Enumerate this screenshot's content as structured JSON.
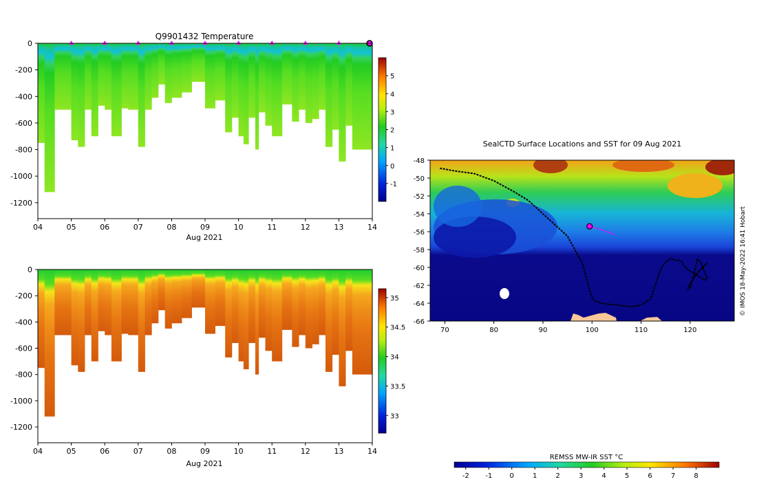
{
  "chart_data": [
    {
      "type": "heatmap",
      "title": "Q9901432  Temperature",
      "xlabel": "Aug 2021",
      "ylabel": "",
      "x_tick_labels": [
        "04",
        "05",
        "06",
        "07",
        "08",
        "09",
        "10",
        "11",
        "12",
        "13",
        "14"
      ],
      "xlim": [
        4,
        14
      ],
      "ylim": [
        -1320,
        0
      ],
      "y_ticks": [
        0,
        -200,
        -400,
        -600,
        -800,
        -1000,
        -1200
      ],
      "grid": false,
      "variable": "temperature",
      "colorbar": {
        "range": [
          -2,
          6
        ],
        "ticks": [
          5,
          4,
          3,
          2,
          1,
          0,
          -1
        ]
      },
      "profile_markers_day": [
        5,
        6,
        7,
        8,
        9,
        10,
        11,
        12,
        13,
        14
      ],
      "series": [
        {
          "name": "profile_depth",
          "x": [
            4.0,
            4.2,
            4.5,
            4.7,
            5.0,
            5.2,
            5.4,
            5.6,
            5.8,
            6.0,
            6.2,
            6.5,
            6.7,
            7.0,
            7.2,
            7.4,
            7.6,
            7.8,
            8.0,
            8.3,
            8.6,
            9.0,
            9.3,
            9.6,
            9.8,
            10.0,
            10.15,
            10.3,
            10.5,
            10.6,
            10.8,
            11.0,
            11.3,
            11.6,
            11.8,
            12.0,
            12.2,
            12.4,
            12.6,
            12.8,
            13.0,
            13.2,
            13.4,
            13.7,
            13.9
          ],
          "values": [
            -750,
            -1120,
            -500,
            -500,
            -730,
            -780,
            -500,
            -700,
            -470,
            -500,
            -700,
            -490,
            -500,
            -780,
            -500,
            -410,
            -310,
            -450,
            -410,
            -370,
            -290,
            -490,
            -430,
            -670,
            -560,
            -700,
            -760,
            -560,
            -800,
            -520,
            -620,
            -700,
            -460,
            -590,
            -500,
            -600,
            -570,
            -500,
            -780,
            -650,
            -890,
            -620,
            -800,
            -800,
            -800
          ]
        },
        {
          "name": "surface_temperature_C",
          "x": [
            4,
            6,
            8,
            10,
            12,
            14
          ],
          "values": [
            1.8,
            0.5,
            0.3,
            0.4,
            0.5,
            1.9
          ]
        },
        {
          "name": "deep_temperature_C",
          "x": [
            4,
            6,
            8,
            10,
            12,
            14
          ],
          "values": [
            2.6,
            1.9,
            1.9,
            1.8,
            1.9,
            2.3
          ]
        }
      ]
    },
    {
      "type": "heatmap",
      "title": "",
      "xlabel": "Aug 2021",
      "ylabel": "",
      "x_tick_labels": [
        "04",
        "05",
        "06",
        "07",
        "08",
        "09",
        "10",
        "11",
        "12",
        "13",
        "14"
      ],
      "xlim": [
        4,
        14
      ],
      "ylim": [
        -1320,
        0
      ],
      "y_ticks": [
        0,
        -200,
        -400,
        -600,
        -800,
        -1000,
        -1200
      ],
      "grid": false,
      "variable": "salinity",
      "colorbar": {
        "range": [
          32.7,
          35.15
        ],
        "tick_labels": [
          "35",
          "34.5",
          "34",
          "33.5",
          "33"
        ],
        "ticks": [
          35,
          34.5,
          34,
          33.5,
          33
        ]
      },
      "series": [
        {
          "name": "surface_salinity",
          "x": [
            4,
            14
          ],
          "values": [
            33.9,
            33.9
          ]
        },
        {
          "name": "deep_salinity",
          "x": [
            4,
            14
          ],
          "values": [
            34.65,
            34.72
          ]
        }
      ]
    },
    {
      "type": "scatter",
      "title": "SealCTD Surface Locations and SST for 09 Aug 2021",
      "xlabel": "",
      "ylabel": "",
      "x_tick_labels": [
        "70",
        "80",
        "90",
        "100",
        "110",
        "120"
      ],
      "y_tick_labels": [
        "-48",
        "-50",
        "-52",
        "-54",
        "-56",
        "-58",
        "-60",
        "-62",
        "-64",
        "-66"
      ],
      "xlim": [
        67,
        129
      ],
      "ylim": [
        -66,
        -48
      ],
      "grid": false,
      "credit": "© IMOS 18-May-2022 16:41 Hobart",
      "colorbar": {
        "label": "REMSS MW-IR SST °C",
        "range": [
          -2.5,
          9.0
        ],
        "tick_labels": [
          "-2",
          "-1",
          "0",
          "1",
          "2",
          "3",
          "4",
          "5",
          "6",
          "7",
          "8"
        ],
        "ticks": [
          -2,
          -1,
          0,
          1,
          2,
          3,
          4,
          5,
          6,
          7,
          8
        ]
      },
      "series": [
        {
          "name": "seal_track",
          "lon": [
            69,
            72,
            76,
            80,
            84,
            87,
            89,
            91,
            93,
            95,
            96,
            97,
            98,
            98.5,
            99,
            99.5,
            100,
            100.5,
            101,
            101.5,
            102,
            103,
            105,
            108,
            110,
            112,
            113,
            114,
            115,
            116,
            117,
            118,
            118.5,
            119,
            120,
            121,
            122,
            123,
            123.5,
            123,
            122.5,
            122,
            121.5,
            121,
            120.5,
            120
          ],
          "lat": [
            -48.9,
            -49.2,
            -49.5,
            -50.3,
            -51.5,
            -52.5,
            -53.5,
            -54.5,
            -55.5,
            -56.5,
            -57.5,
            -58.5,
            -59.5,
            -60.5,
            -61.5,
            -62.5,
            -63.3,
            -63.7,
            -63.8,
            -63.9,
            -64.0,
            -64.1,
            -64.2,
            -64.4,
            -64.2,
            -63.5,
            -61.8,
            -60.2,
            -59.4,
            -59.0,
            -59.2,
            -59.2,
            -59.5,
            -60.0,
            -60.4,
            -60.7,
            -61.1,
            -61.4,
            -61.2,
            -60.6,
            -59.9,
            -59.3,
            -59.1,
            -60.2,
            -61.3,
            -62.5
          ]
        },
        {
          "name": "segment_2",
          "lon": [
            119.5,
            120,
            121,
            122,
            123.5
          ],
          "lat": [
            -62.5,
            -61.8,
            -61.0,
            -60.3,
            -59.5
          ]
        },
        {
          "name": "current_position",
          "lon": [
            99.5
          ],
          "lat": [
            -55.4
          ]
        },
        {
          "name": "recent_positions",
          "lon": [
            100,
            101,
            102,
            103,
            104,
            104.5
          ],
          "lat": [
            -55.5,
            -55.6,
            -55.8,
            -56.0,
            -56.2,
            -56.3
          ]
        }
      ]
    }
  ]
}
